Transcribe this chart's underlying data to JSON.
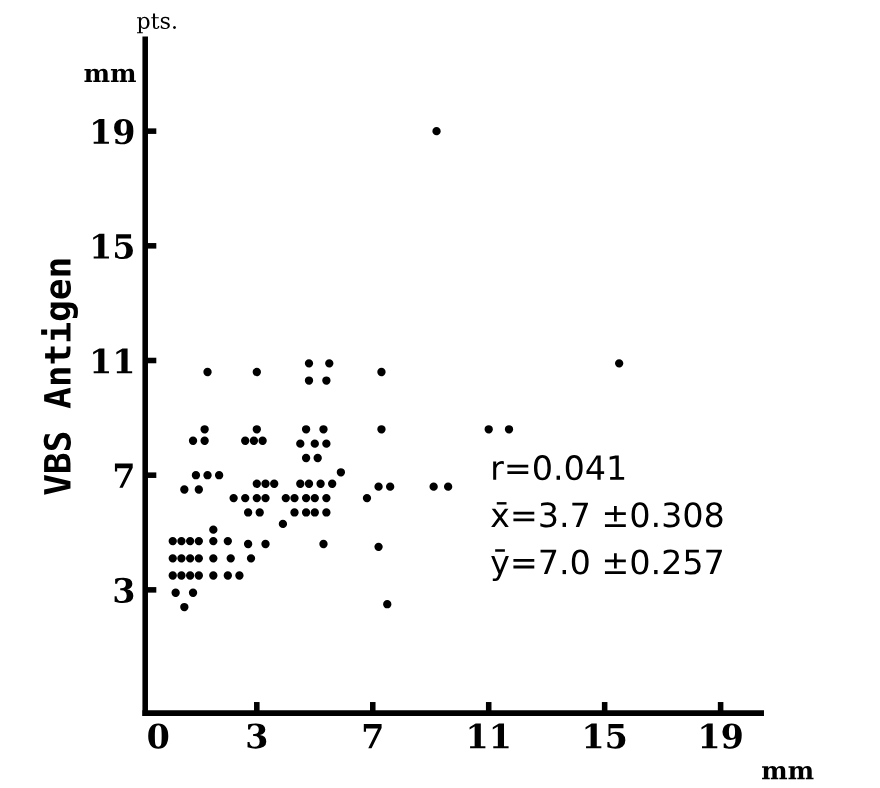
{
  "chart_data": {
    "type": "scatter",
    "ylabel": "VBS Antigen",
    "xlabel": "mm",
    "annotations": [
      "pts.",
      "mm",
      "r=0.041",
      "x̄=3.7 ±0.308",
      "ȳ=7.0 ±0.257"
    ],
    "series": [
      {
        "color": "#000000",
        "x": [
          1.3,
          1.2,
          0.8,
          1.2,
          0.9,
          1.3,
          1.7,
          0.5,
          1.0,
          1.5,
          0.1,
          0.4,
          0.7,
          1.0,
          1.5,
          2.0,
          0.1,
          0.4,
          0.7,
          1.0,
          1.5,
          2.1,
          2.8,
          0.1,
          0.4,
          0.7,
          1.0,
          1.5,
          2.0,
          2.4,
          0.2,
          0.8,
          0.5,
          3.0,
          3.0,
          2.6,
          2.9,
          3.2,
          3.0,
          3.3,
          3.6,
          2.2,
          2.6,
          3.0,
          3.3,
          2.7,
          3.1,
          2.7,
          3.3,
          4.8,
          5.5,
          4.8,
          5.4,
          4.7,
          5.3,
          4.5,
          5.0,
          5.4,
          4.7,
          5.1,
          4.5,
          4.8,
          5.2,
          5.6,
          5.9,
          4.0,
          4.3,
          4.7,
          5.0,
          5.4,
          4.3,
          4.7,
          5.0,
          5.4,
          3.9,
          5.3,
          7.3,
          7.3,
          7.2,
          7.6,
          6.8,
          7.2,
          7.5,
          9.2,
          9.1,
          9.6,
          11.0,
          11.7,
          15.5
        ],
        "values": [
          10.6,
          8.6,
          8.2,
          8.2,
          7.0,
          7.0,
          7.0,
          6.5,
          6.5,
          5.1,
          4.7,
          4.7,
          4.7,
          4.7,
          4.7,
          4.7,
          4.1,
          4.1,
          4.1,
          4.1,
          4.1,
          4.1,
          4.1,
          3.5,
          3.5,
          3.5,
          3.5,
          3.5,
          3.5,
          3.5,
          2.9,
          2.9,
          2.4,
          10.6,
          8.6,
          8.2,
          8.2,
          8.2,
          6.7,
          6.7,
          6.7,
          6.2,
          6.2,
          6.2,
          6.2,
          5.7,
          5.7,
          4.6,
          4.6,
          10.9,
          10.9,
          10.3,
          10.3,
          8.6,
          8.6,
          8.1,
          8.1,
          8.1,
          7.6,
          7.6,
          6.7,
          6.7,
          6.7,
          6.7,
          7.1,
          6.2,
          6.2,
          6.2,
          6.2,
          6.2,
          5.7,
          5.7,
          5.7,
          5.7,
          5.3,
          4.6,
          10.6,
          8.6,
          6.6,
          6.6,
          6.2,
          4.5,
          2.5,
          19.0,
          6.6,
          6.6,
          8.6,
          8.6,
          10.9
        ]
      }
    ],
    "marker": "circle",
    "xlim": [
      -0.85,
      20.4
    ],
    "ylim": [
      -1.3,
      22.2
    ],
    "xticks": [
      0,
      3,
      7,
      11,
      15,
      19
    ],
    "yticks": [
      3,
      7,
      11,
      15,
      19
    ],
    "grid": false,
    "legend": false
  }
}
